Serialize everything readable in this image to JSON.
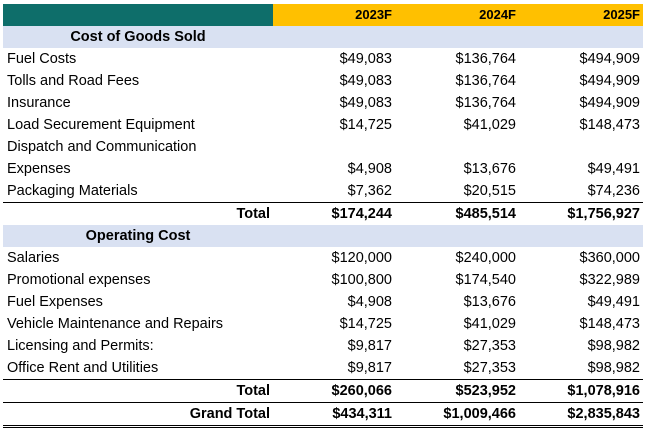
{
  "header": {
    "years": [
      "2023F",
      "2024F",
      "2025F"
    ]
  },
  "cogs": {
    "title": "Cost of Goods Sold",
    "rows": [
      {
        "label": "Fuel Costs",
        "values": [
          "$49,083",
          "$136,764",
          "$494,909"
        ]
      },
      {
        "label": "Tolls and Road Fees",
        "values": [
          "$49,083",
          "$136,764",
          "$494,909"
        ]
      },
      {
        "label": "Insurance",
        "values": [
          "$49,083",
          "$136,764",
          "$494,909"
        ]
      },
      {
        "label": "Load Securement Equipment",
        "values": [
          "$14,725",
          "$41,029",
          "$148,473"
        ]
      },
      {
        "label_line1": "Dispatch and Communication",
        "label": "Expenses",
        "values": [
          "$4,908",
          "$13,676",
          "$49,491"
        ]
      },
      {
        "label": "Packaging Materials",
        "values": [
          "$7,362",
          "$20,515",
          "$74,236"
        ]
      }
    ],
    "total_label": "Total",
    "total": [
      "$174,244",
      "$485,514",
      "$1,756,927"
    ]
  },
  "opex": {
    "title": "Operating Cost",
    "rows": [
      {
        "label": "Salaries",
        "values": [
          "$120,000",
          "$240,000",
          "$360,000"
        ]
      },
      {
        "label": "Promotional expenses",
        "values": [
          "$100,800",
          "$174,540",
          "$322,989"
        ]
      },
      {
        "label": "Fuel Expenses",
        "values": [
          "$4,908",
          "$13,676",
          "$49,491"
        ]
      },
      {
        "label": "Vehicle Maintenance and Repairs",
        "values": [
          "$14,725",
          "$41,029",
          "$148,473"
        ]
      },
      {
        "label": "Licensing and Permits:",
        "values": [
          "$9,817",
          "$27,353",
          "$98,982"
        ]
      },
      {
        "label": "Office Rent and Utilities",
        "values": [
          "$9,817",
          "$27,353",
          "$98,982"
        ]
      }
    ],
    "total_label": "Total",
    "total": [
      "$260,066",
      "$523,952",
      "$1,078,916"
    ]
  },
  "grand_total": {
    "label": "Grand Total",
    "values": [
      "$434,311",
      "$1,009,466",
      "$2,835,843"
    ]
  }
}
